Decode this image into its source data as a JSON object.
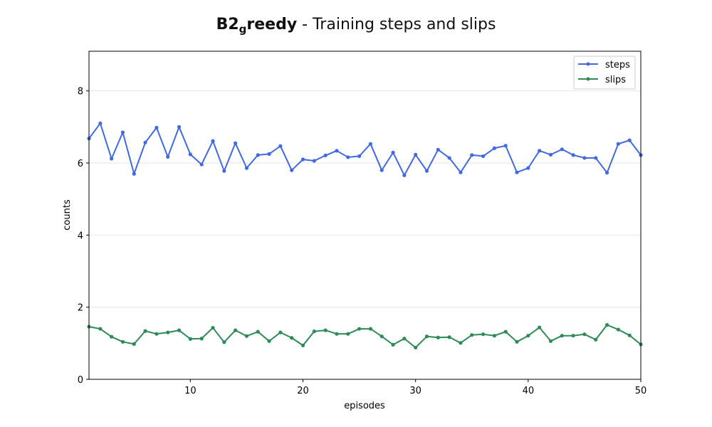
{
  "title": {
    "prefix": "B2",
    "subscript": "g",
    "bold_rest": "reedy",
    "rest": " - Training steps and slips"
  },
  "colors": {
    "steps": "#4169e1",
    "slips": "#2e8b57",
    "grid": "#e6e6e6"
  },
  "chart_data": {
    "type": "line",
    "title": "B2greedy - Training steps and slips",
    "xlabel": "episodes",
    "ylabel": "counts",
    "xlim": [
      1,
      50
    ],
    "ylim": [
      0,
      9.1
    ],
    "xticks": [
      10,
      20,
      30,
      40,
      50
    ],
    "yticks": [
      0,
      2,
      4,
      6,
      8
    ],
    "grid": "horizontal",
    "legend_position": "top-right",
    "x": [
      1,
      2,
      3,
      4,
      5,
      6,
      7,
      8,
      9,
      10,
      11,
      12,
      13,
      14,
      15,
      16,
      17,
      18,
      19,
      20,
      21,
      22,
      23,
      24,
      25,
      26,
      27,
      28,
      29,
      30,
      31,
      32,
      33,
      34,
      35,
      36,
      37,
      38,
      39,
      40,
      41,
      42,
      43,
      44,
      45,
      46,
      47,
      48,
      49,
      50
    ],
    "series": [
      {
        "name": "steps",
        "values": [
          6.68,
          7.1,
          6.12,
          6.85,
          5.7,
          6.57,
          6.98,
          6.17,
          7.0,
          6.24,
          5.96,
          6.61,
          5.78,
          6.55,
          5.86,
          6.22,
          6.25,
          6.47,
          5.8,
          6.1,
          6.06,
          6.21,
          6.34,
          6.16,
          6.19,
          6.53,
          5.8,
          6.29,
          5.66,
          6.23,
          5.78,
          6.37,
          6.14,
          5.74,
          6.22,
          6.19,
          6.41,
          6.48,
          5.74,
          5.86,
          6.34,
          6.23,
          6.38,
          6.22,
          6.14,
          6.14,
          5.73,
          6.53,
          6.63,
          6.22
        ]
      },
      {
        "name": "slips",
        "values": [
          1.46,
          1.4,
          1.18,
          1.04,
          0.98,
          1.34,
          1.26,
          1.3,
          1.36,
          1.12,
          1.13,
          1.43,
          1.03,
          1.36,
          1.2,
          1.32,
          1.06,
          1.3,
          1.15,
          0.94,
          1.33,
          1.36,
          1.26,
          1.26,
          1.4,
          1.4,
          1.19,
          0.96,
          1.13,
          0.88,
          1.19,
          1.16,
          1.17,
          1.01,
          1.23,
          1.25,
          1.21,
          1.32,
          1.04,
          1.21,
          1.44,
          1.06,
          1.21,
          1.21,
          1.25,
          1.1,
          1.51,
          1.38,
          1.22,
          0.97
        ]
      }
    ]
  }
}
